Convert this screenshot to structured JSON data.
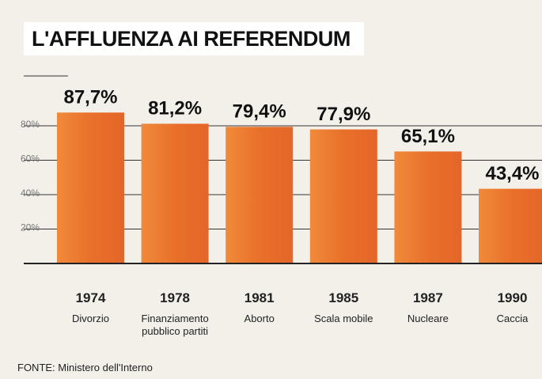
{
  "chart_data": {
    "type": "bar",
    "title": "L'AFFLUENZA AI REFERENDUM",
    "categories": [
      "1974",
      "1978",
      "1981",
      "1985",
      "1987",
      "1990"
    ],
    "category_names": [
      "Divorzio",
      "Finanziamento pubblico partiti",
      "Aborto",
      "Scala mobile",
      "Nucleare",
      "Caccia"
    ],
    "values": [
      87.7,
      81.2,
      79.4,
      77.9,
      65.1,
      43.4
    ],
    "value_labels": [
      "87,7%",
      "81,2%",
      "79,4%",
      "77,9%",
      "65,1%",
      "43,4%"
    ],
    "color": "#e9702a",
    "ylim": [
      0,
      100
    ],
    "yticks": [
      {
        "value": 20,
        "label": "20%"
      },
      {
        "value": 40,
        "label": "40%"
      },
      {
        "value": 60,
        "label": "60%"
      },
      {
        "value": 80,
        "label": "80%"
      }
    ],
    "grid": true,
    "source": "FONTE: Ministero dell'Interno"
  }
}
